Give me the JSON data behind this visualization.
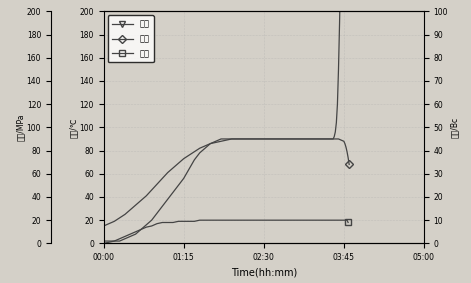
{
  "xlabel": "Time(hh:mm)",
  "ylabel_temp": "温度/℃",
  "ylabel_press": "压力/MPa",
  "ylabel_consist": "稠度/Bc",
  "ylim_left": [
    0,
    200
  ],
  "ylim_right": [
    0,
    100
  ],
  "yticks_left": [
    0,
    20,
    40,
    60,
    80,
    100,
    120,
    140,
    160,
    180,
    200
  ],
  "yticks_right": [
    0,
    10,
    20,
    30,
    40,
    50,
    60,
    70,
    80,
    90,
    100
  ],
  "xlim": [
    0,
    300
  ],
  "xtick_positions": [
    0,
    75,
    150,
    225,
    300
  ],
  "xtick_labels": [
    "00:00",
    "01:15",
    "02:30",
    "03:45",
    "05:00"
  ],
  "legend_labels": [
    "稠度",
    "温度",
    "压力"
  ],
  "background_color": "#d4d0c8",
  "grid_color": "#aaaaaa",
  "consist_time": [
    0,
    5,
    10,
    15,
    20,
    25,
    30,
    35,
    40,
    45,
    50,
    55,
    60,
    65,
    70,
    75,
    80,
    85,
    90,
    95,
    100,
    105,
    110,
    115,
    120,
    125,
    130,
    135,
    140,
    145,
    150,
    155,
    160,
    165,
    170,
    175,
    180,
    185,
    190,
    195,
    200,
    205,
    210,
    215,
    216,
    217,
    218,
    219,
    220,
    221,
    222,
    223,
    224,
    225,
    226,
    227,
    228
  ],
  "consist_vals": [
    1,
    1,
    1,
    1,
    2,
    3,
    4,
    6,
    8,
    10,
    13,
    16,
    19,
    22,
    25,
    28,
    32,
    36,
    39,
    41,
    43,
    44,
    45,
    45,
    45,
    45,
    45,
    45,
    45,
    45,
    45,
    45,
    45,
    45,
    45,
    45,
    45,
    45,
    45,
    45,
    45,
    45,
    45,
    45,
    46,
    48,
    52,
    60,
    75,
    95,
    120,
    155,
    185,
    200,
    195,
    190,
    185
  ],
  "temp_time": [
    0,
    5,
    10,
    15,
    20,
    25,
    30,
    35,
    40,
    45,
    50,
    55,
    60,
    65,
    70,
    75,
    80,
    85,
    90,
    95,
    100,
    105,
    110,
    115,
    120,
    125,
    130,
    135,
    140,
    145,
    150,
    155,
    160,
    165,
    170,
    175,
    180,
    185,
    190,
    195,
    200,
    205,
    210,
    215,
    220,
    225,
    226,
    227,
    228,
    229,
    230
  ],
  "temp_vals": [
    15,
    17,
    19,
    22,
    25,
    29,
    33,
    37,
    41,
    46,
    51,
    56,
    61,
    65,
    69,
    73,
    76,
    79,
    82,
    84,
    86,
    87,
    88,
    89,
    90,
    90,
    90,
    90,
    90,
    90,
    90,
    90,
    90,
    90,
    90,
    90,
    90,
    90,
    90,
    90,
    90,
    90,
    90,
    90,
    90,
    88,
    86,
    83,
    79,
    74,
    68
  ],
  "press_time": [
    0,
    5,
    10,
    15,
    20,
    25,
    30,
    35,
    40,
    45,
    50,
    55,
    60,
    65,
    70,
    75,
    80,
    85,
    90,
    95,
    100,
    105,
    110,
    115,
    120,
    125,
    130,
    135,
    140,
    145,
    150,
    155,
    160,
    165,
    170,
    175,
    180,
    185,
    190,
    195,
    200,
    205,
    210,
    215,
    220,
    225,
    226,
    227,
    228,
    229
  ],
  "press_vals": [
    0,
    1,
    2,
    4,
    6,
    8,
    10,
    12,
    14,
    15,
    17,
    18,
    18,
    18,
    19,
    19,
    19,
    19,
    20,
    20,
    20,
    20,
    20,
    20,
    20,
    20,
    20,
    20,
    20,
    20,
    20,
    20,
    20,
    20,
    20,
    20,
    20,
    20,
    20,
    20,
    20,
    20,
    20,
    20,
    20,
    20,
    20,
    20,
    20,
    18
  ]
}
